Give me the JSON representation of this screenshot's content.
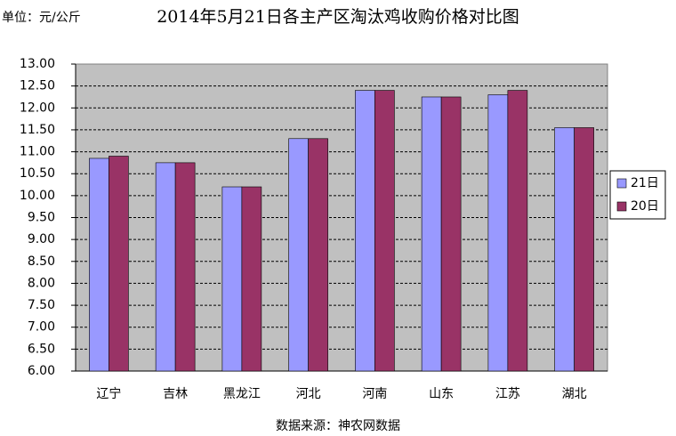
{
  "chart_data": {
    "type": "bar",
    "unit_label": "单位：元/公斤",
    "title": "2014年5月21日各主产区淘汰鸡收购价格对比图",
    "source": "数据来源：神农网数据",
    "categories": [
      "辽宁",
      "吉林",
      "黑龙江",
      "河北",
      "河南",
      "山东",
      "江苏",
      "湖北"
    ],
    "series": [
      {
        "name": "21日",
        "color": "#9999ff",
        "values": [
          10.85,
          10.75,
          10.2,
          11.3,
          12.4,
          12.25,
          12.3,
          11.55
        ]
      },
      {
        "name": "20日",
        "color": "#993366",
        "values": [
          10.9,
          10.75,
          10.2,
          11.3,
          12.4,
          12.25,
          12.4,
          11.55
        ]
      }
    ],
    "ylim": [
      6,
      13
    ],
    "yticks": [
      {
        "value": 6,
        "label": "6.00"
      },
      {
        "value": 6.5,
        "label": "6.50"
      },
      {
        "value": 7,
        "label": "7.00"
      },
      {
        "value": 7.5,
        "label": "7.50"
      },
      {
        "value": 8,
        "label": "8.00"
      },
      {
        "value": 8.5,
        "label": "8.50"
      },
      {
        "value": 9,
        "label": "9.00"
      },
      {
        "value": 9.5,
        "label": "9.50"
      },
      {
        "value": 10,
        "label": "10.00"
      },
      {
        "value": 10.5,
        "label": "10.50"
      },
      {
        "value": 11,
        "label": "11.00"
      },
      {
        "value": 11.5,
        "label": "11.50"
      },
      {
        "value": 12,
        "label": "12.00"
      },
      {
        "value": 12.5,
        "label": "12.50"
      },
      {
        "value": 13,
        "label": "13.00"
      }
    ],
    "grid": true,
    "plot_background": "#c0c0c0",
    "legend": "right"
  }
}
